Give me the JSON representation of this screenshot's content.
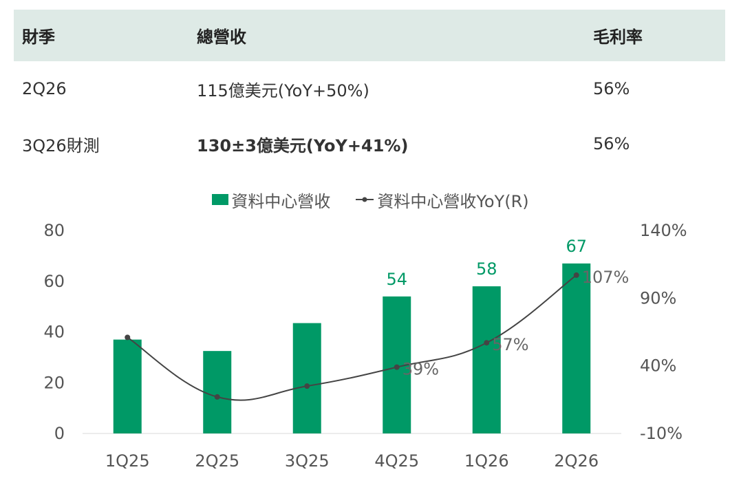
{
  "table": {
    "headers": [
      "財季",
      "總營收",
      "毛利率"
    ],
    "rows": [
      {
        "quarter": "2Q26",
        "revenue": "115億美元(YoY+50%)",
        "margin": "56%"
      },
      {
        "quarter": "3Q26財測",
        "revenue": "130±3億美元(YoY+41%)",
        "margin": "56%"
      }
    ]
  },
  "colors": {
    "bar": "#009966",
    "line": "#444444",
    "header_bg": "#deeae6",
    "bar_label": "#009966"
  },
  "chart_data": {
    "type": "bar+line",
    "categories": [
      "1Q25",
      "2Q25",
      "3Q25",
      "4Q25",
      "1Q26",
      "2Q26"
    ],
    "series": [
      {
        "name": "資料中心營收",
        "type": "bar",
        "axis": "left",
        "values": [
          37,
          32.5,
          43.5,
          54,
          58,
          67
        ]
      },
      {
        "name": "資料中心營收YoY(R)",
        "type": "line",
        "axis": "right",
        "values": [
          61,
          17,
          25,
          39,
          57,
          107
        ]
      }
    ],
    "bar_labels": [
      {
        "index": 3,
        "text": "54"
      },
      {
        "index": 4,
        "text": "58"
      },
      {
        "index": 5,
        "text": "67"
      }
    ],
    "line_labels": [
      {
        "index": 3,
        "text": "39%"
      },
      {
        "index": 4,
        "text": "57%"
      },
      {
        "index": 5,
        "text": "107%"
      }
    ],
    "y_left": {
      "min": 0,
      "max": 80,
      "ticks": [
        "0",
        "20",
        "40",
        "60",
        "80"
      ]
    },
    "y_right": {
      "min": -10,
      "max": 140,
      "ticks": [
        "-10%",
        "40%",
        "90%",
        "140%"
      ]
    },
    "legend_position": "top",
    "grid": false
  }
}
